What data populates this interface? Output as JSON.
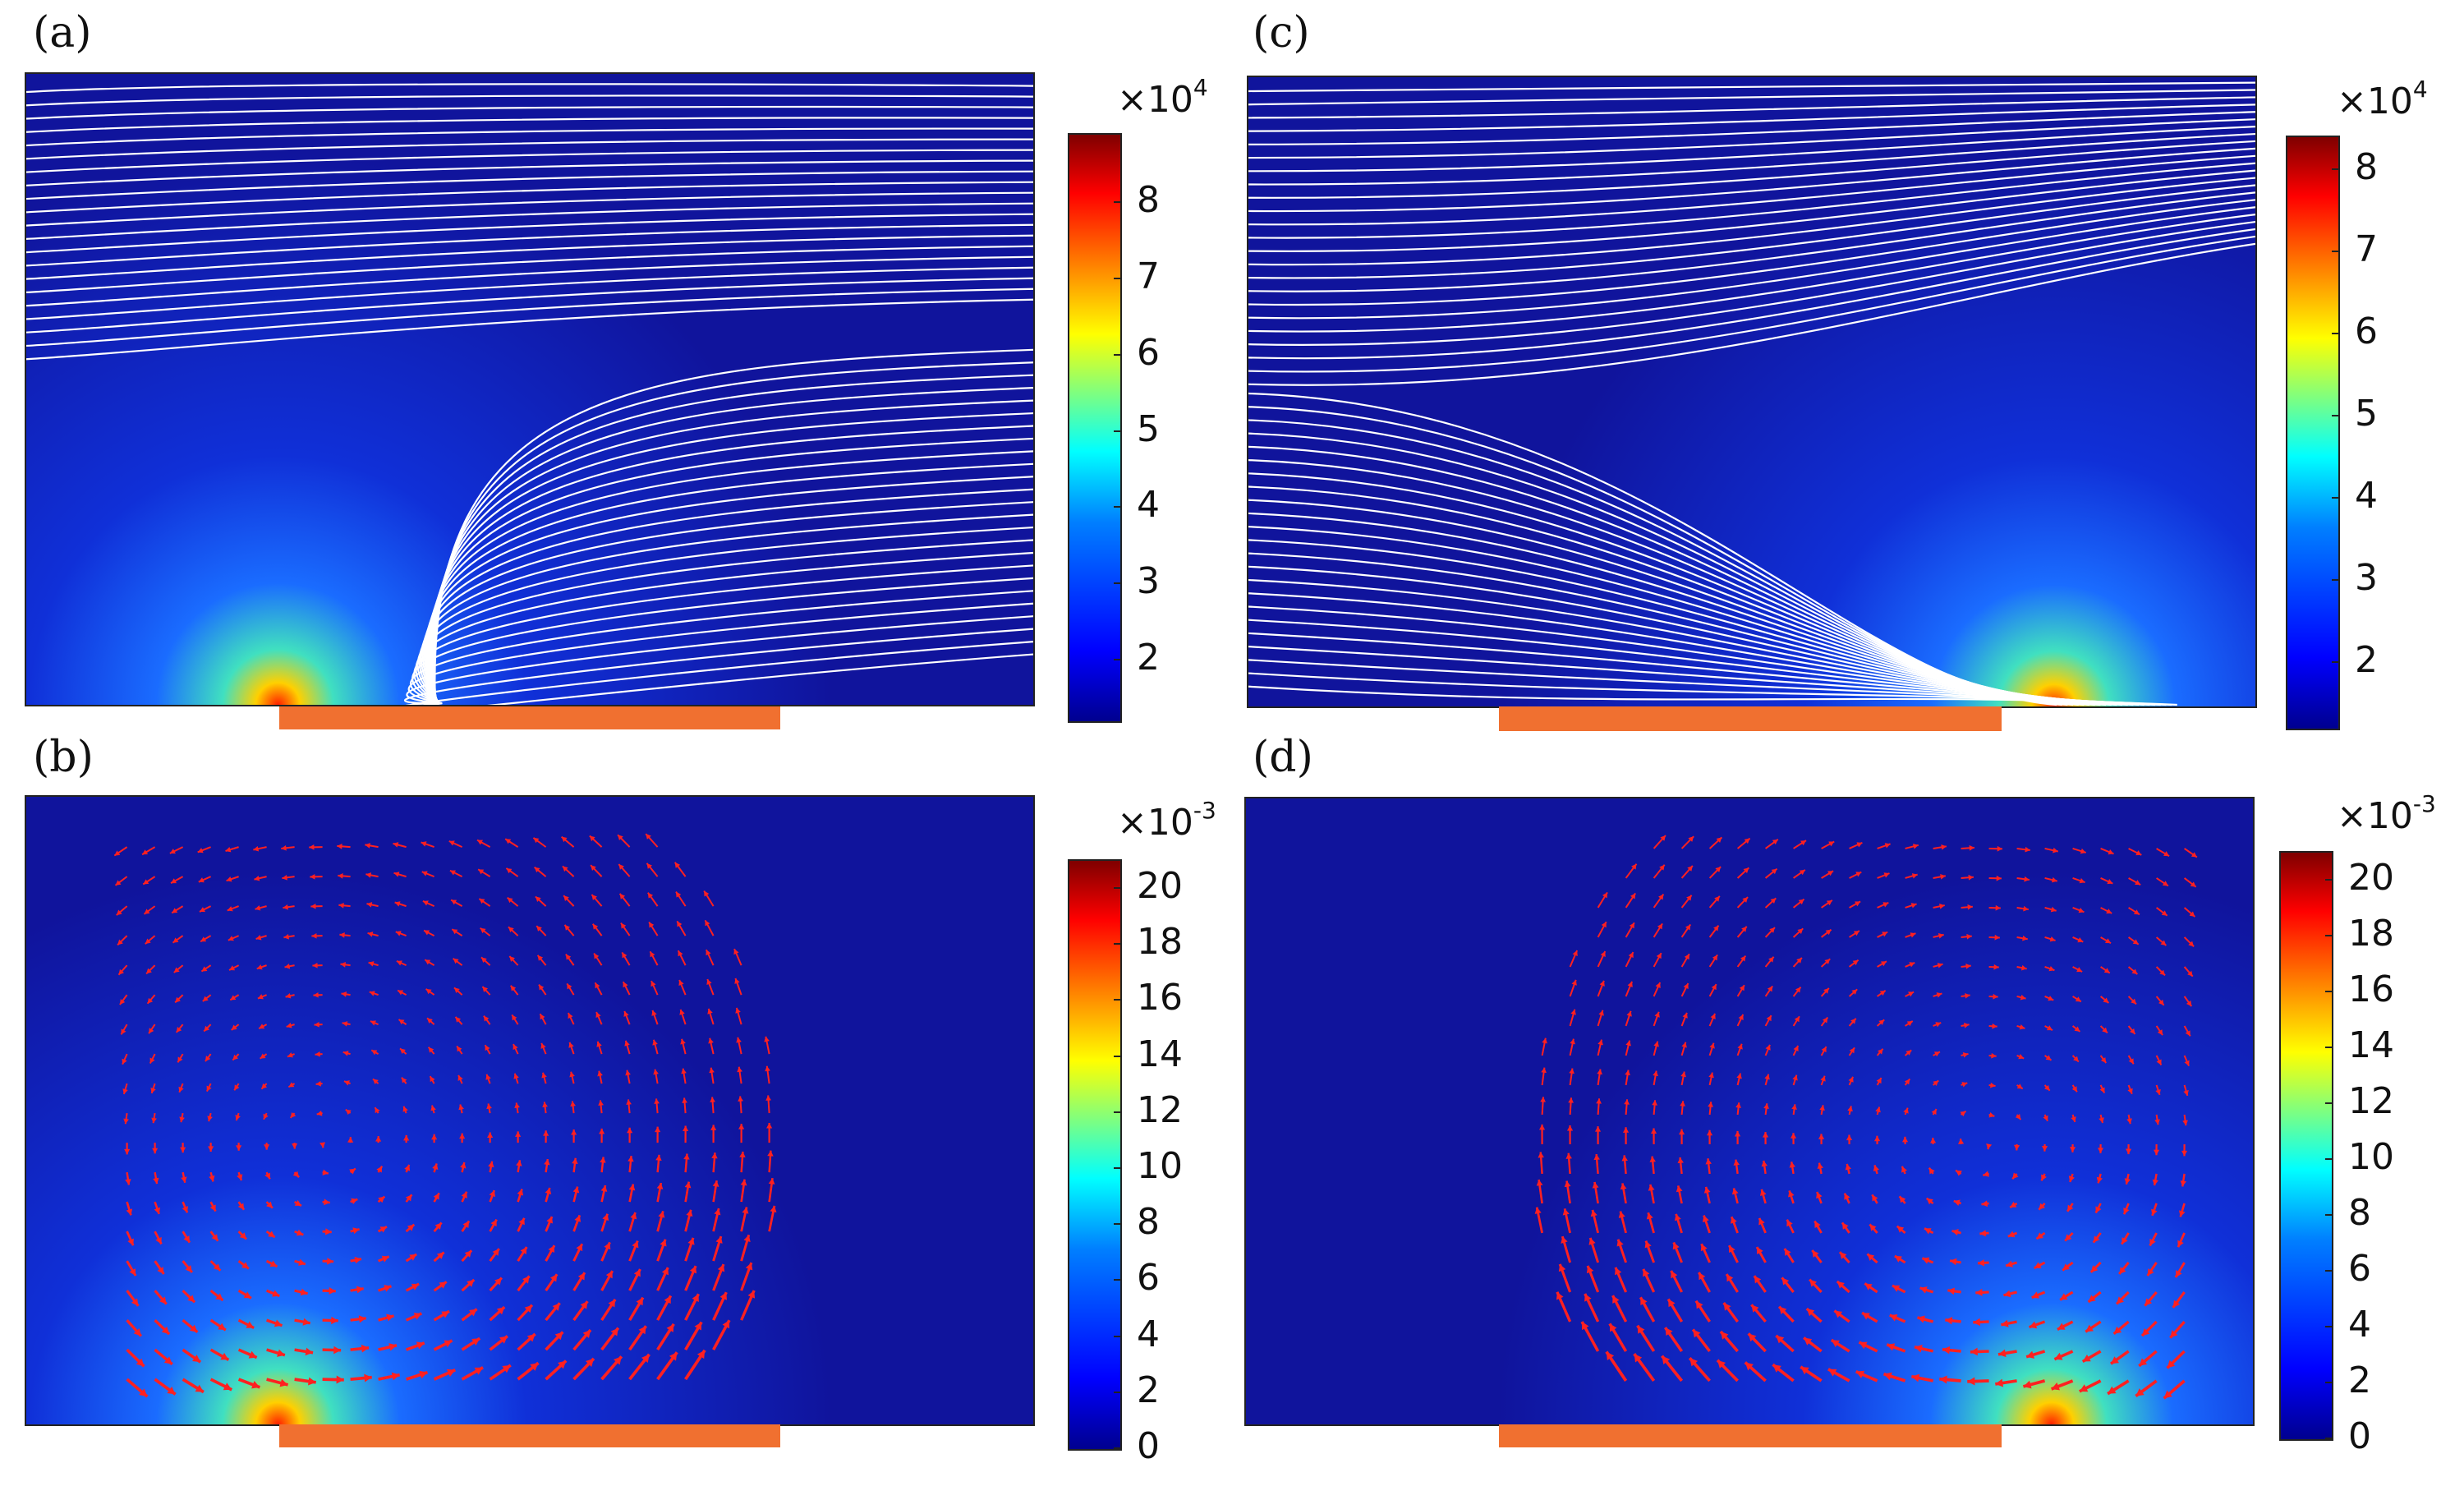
{
  "panels": [
    {
      "label": "(a)",
      "field": "streamlines",
      "electrode_side": "left",
      "colorbar": {
        "multiplier_base": "×10",
        "multiplier_exp": "4",
        "ticks": [
          "8",
          "7",
          "6",
          "5",
          "4",
          "3",
          "2"
        ],
        "min": 1.2,
        "max": 8.9
      }
    },
    {
      "label": "(b)",
      "field": "arrows",
      "electrode_side": "left",
      "colorbar": {
        "multiplier_base": "×10",
        "multiplier_exp": "-3",
        "ticks": [
          "20",
          "18",
          "16",
          "14",
          "12",
          "10",
          "8",
          "6",
          "4",
          "2",
          "0"
        ],
        "min": 0,
        "max": 21
      }
    },
    {
      "label": "(c)",
      "field": "streamlines",
      "electrode_side": "right",
      "colorbar": {
        "multiplier_base": "×10",
        "multiplier_exp": "4",
        "ticks": [
          "8",
          "7",
          "6",
          "5",
          "4",
          "3",
          "2"
        ],
        "min": 1.2,
        "max": 8.4
      }
    },
    {
      "label": "(d)",
      "field": "arrows",
      "electrode_side": "right",
      "colorbar": {
        "multiplier_base": "×10",
        "multiplier_exp": "-3",
        "ticks": [
          "20",
          "18",
          "16",
          "14",
          "12",
          "10",
          "8",
          "6",
          "4",
          "2",
          "0"
        ],
        "min": 0,
        "max": 21
      }
    }
  ],
  "colors": {
    "background_field": "#10149c",
    "streamline": "#ffffff",
    "arrow": "#ff2020",
    "electrode": "#f07030"
  }
}
